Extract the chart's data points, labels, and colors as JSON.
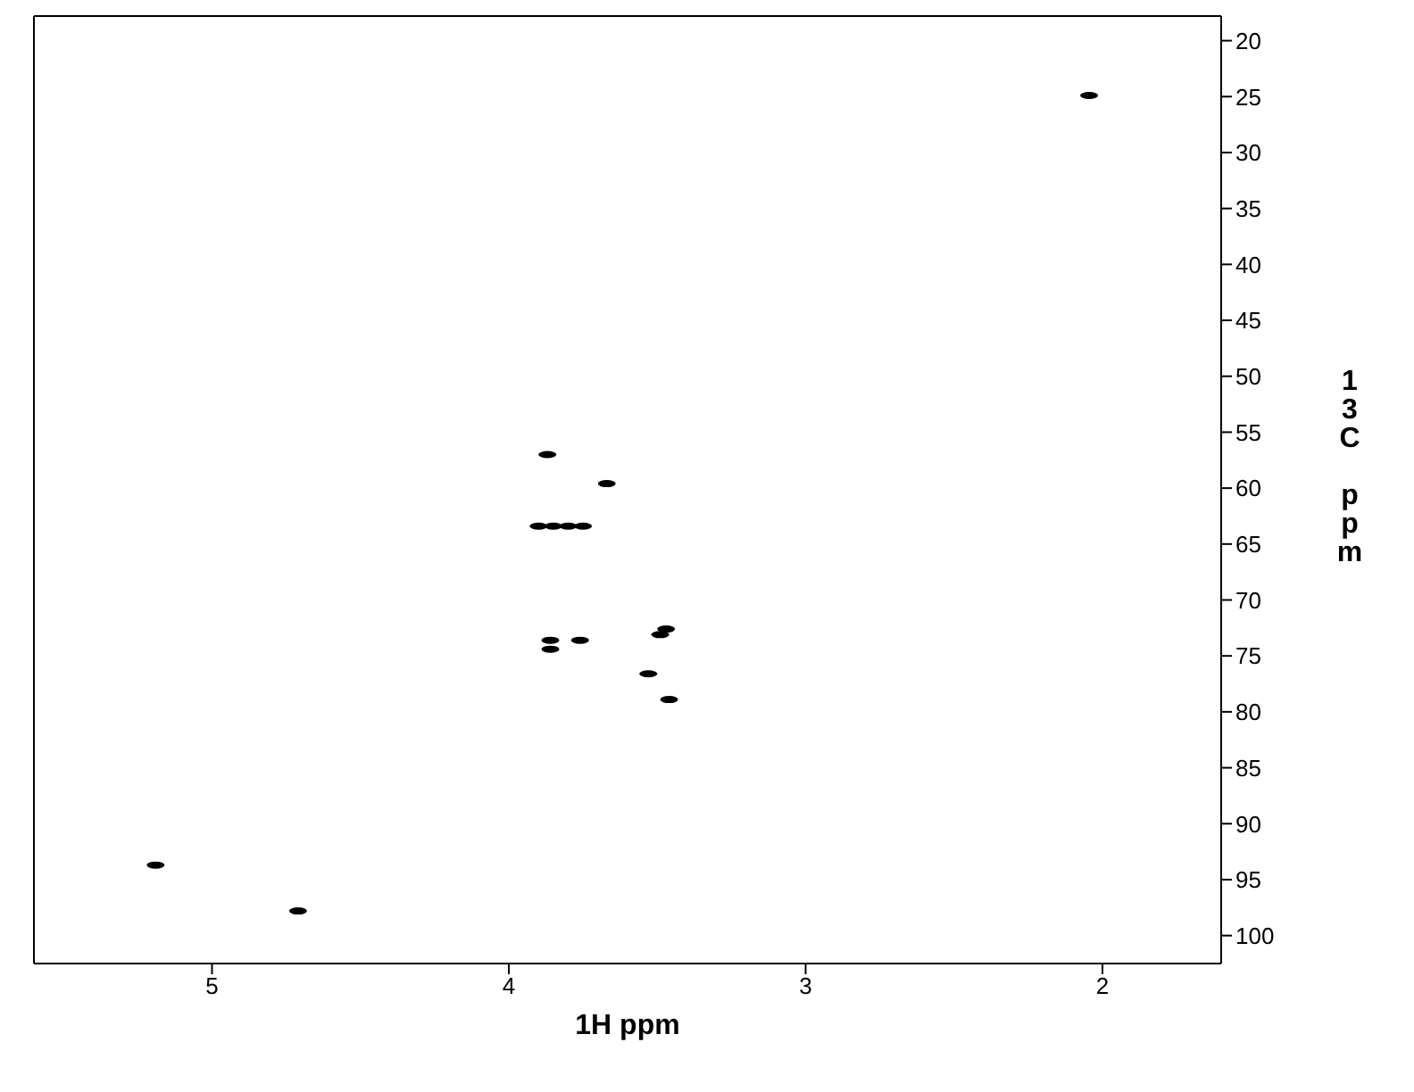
{
  "chart_data": {
    "type": "scatter",
    "xlabel": "1H ppm",
    "ylabel": "13C ppm",
    "x": [
      2.045,
      3.87,
      3.67,
      3.9,
      3.85,
      3.8,
      3.75,
      3.47,
      3.49,
      3.76,
      3.86,
      3.86,
      3.53,
      3.46,
      5.19,
      4.71
    ],
    "series": [
      {
        "color": "#000000",
        "values": [
          24.9,
          57.0,
          59.6,
          63.4,
          63.4,
          63.4,
          63.4,
          72.6,
          73.1,
          73.6,
          73.6,
          74.4,
          76.6,
          78.9,
          93.7,
          97.8
        ]
      }
    ],
    "xlim": [
      5.6,
      1.6
    ],
    "xticks": [
      5,
      4,
      3,
      2
    ],
    "ylim": [
      102.5,
      17.8
    ],
    "yticks": [
      20,
      25,
      30,
      35,
      40,
      45,
      50,
      55,
      60,
      65,
      70,
      75,
      80,
      85,
      90,
      95,
      100
    ]
  }
}
